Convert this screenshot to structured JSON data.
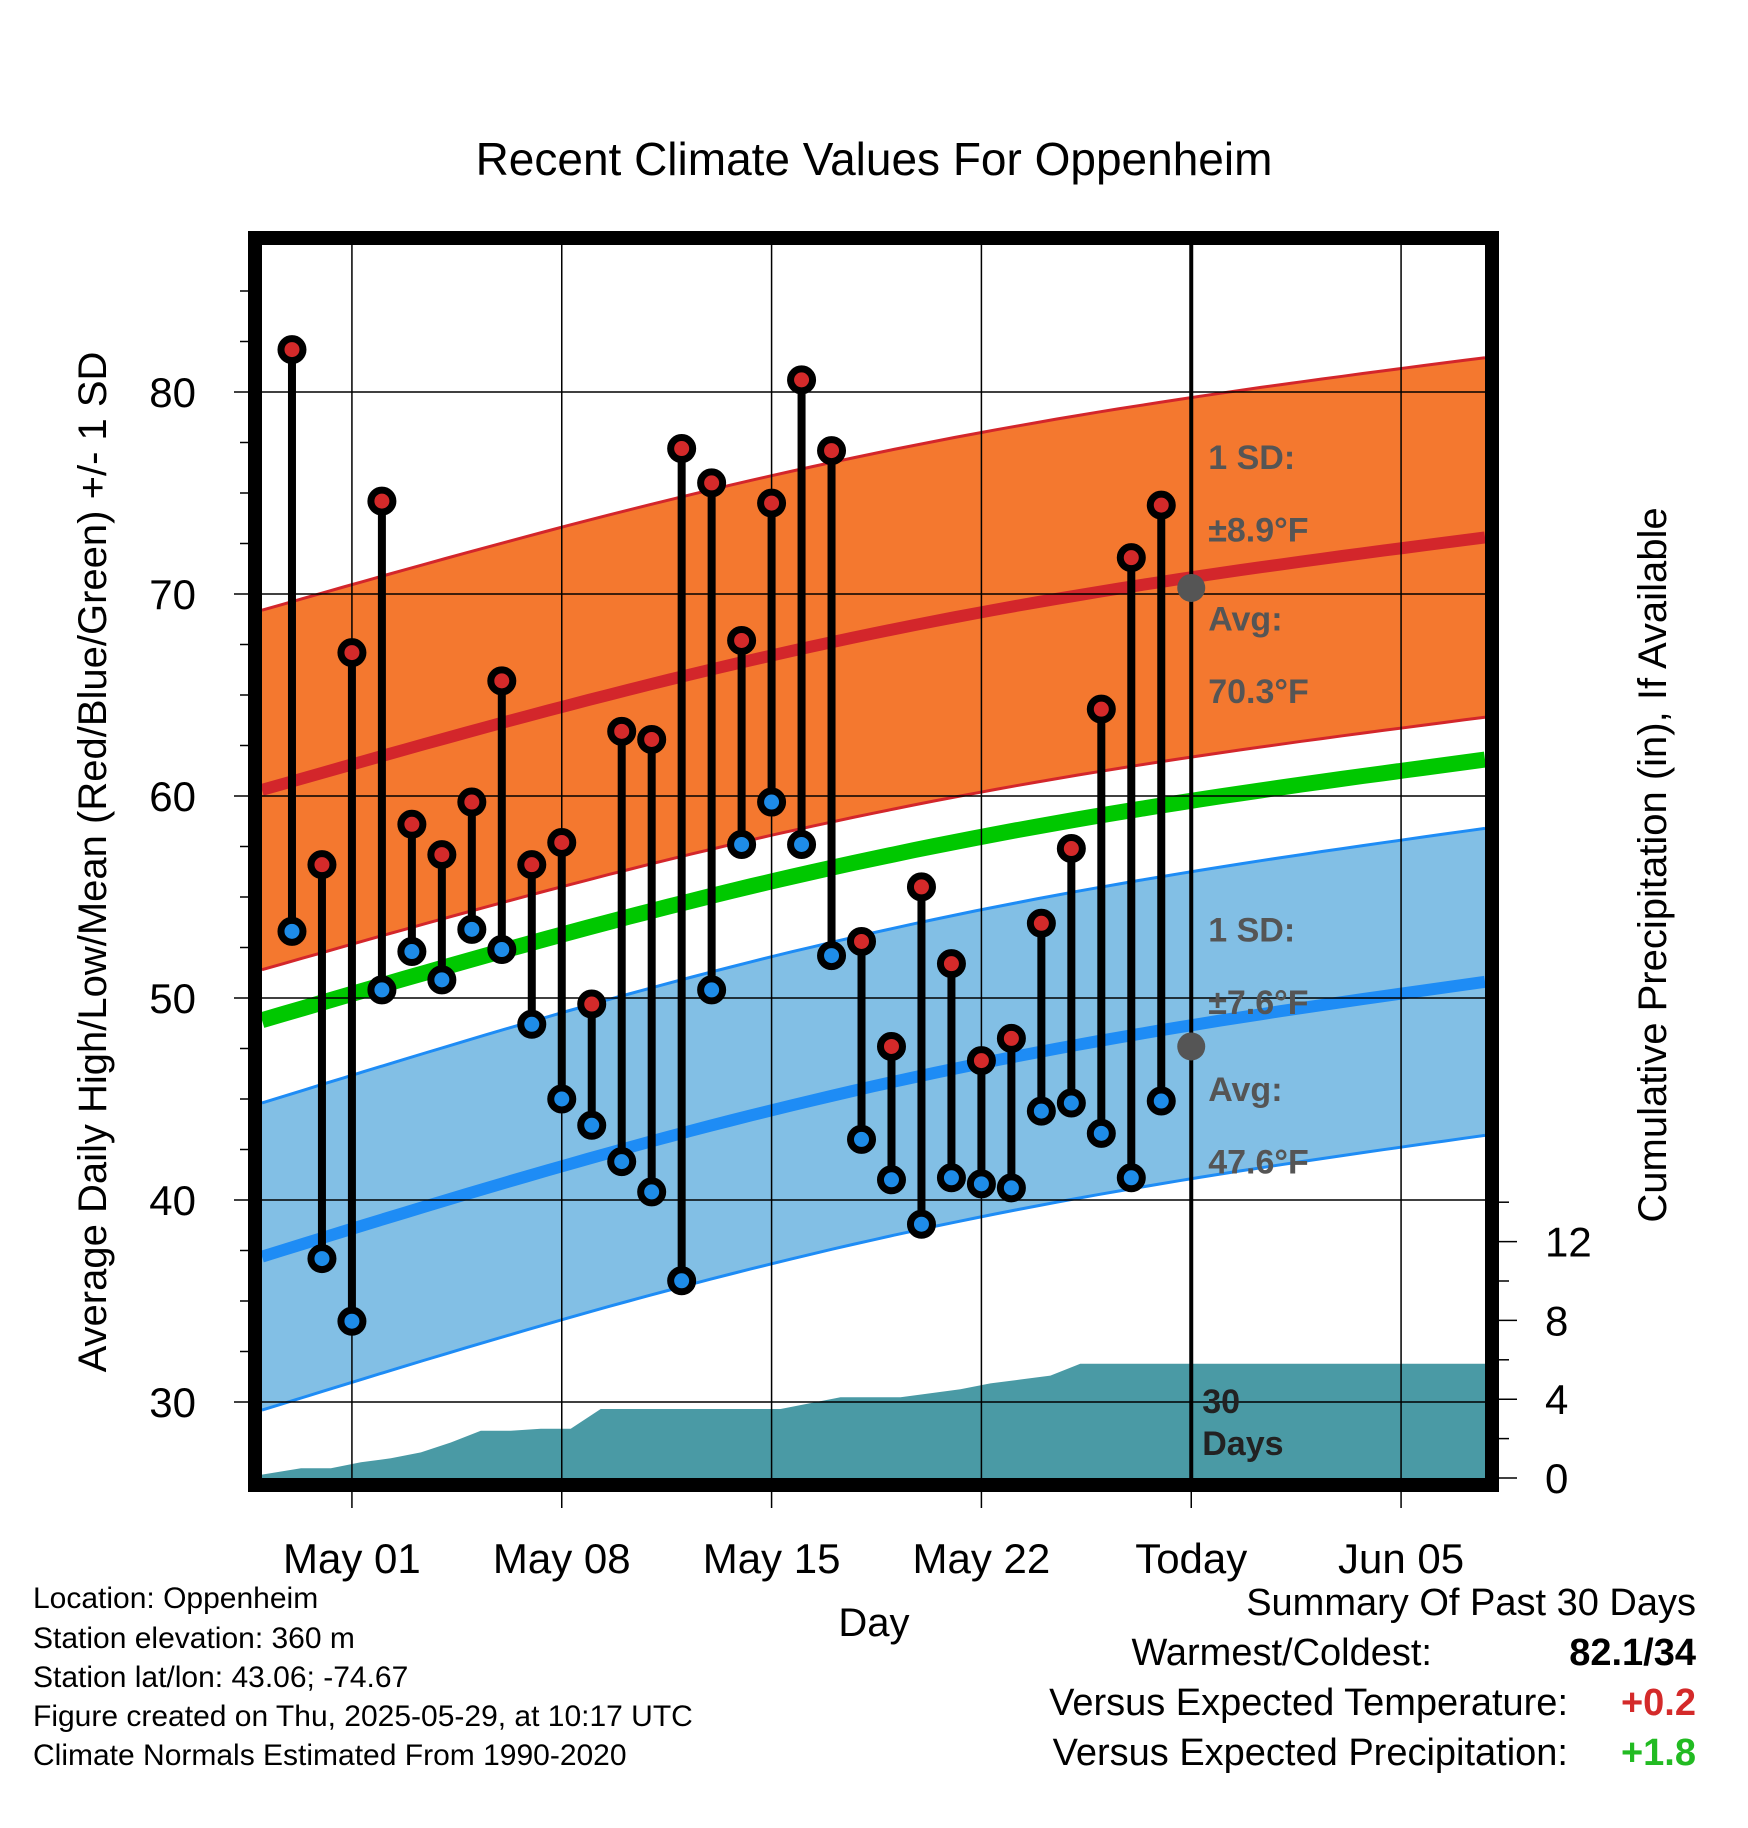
{
  "chart_data": {
    "type": "line",
    "title": "Recent Climate Values For Oppenheim",
    "xlabel": "Day",
    "ylabel": "Average Daily High/Low/Mean (Red/Blue/Green) +/- 1 SD",
    "y2label": "Cumulative Precipitation (in), If Available",
    "ylim": [
      26,
      88
    ],
    "y2lim": [
      0,
      30
    ],
    "y_ticks": [
      "30",
      "40",
      "50",
      "60",
      "70",
      "80"
    ],
    "y2_ticks": [
      "0",
      "4",
      "8",
      "12"
    ],
    "x_ticks": [
      {
        "label": "May 01",
        "day": 1
      },
      {
        "label": "May 08",
        "day": 8
      },
      {
        "label": "May 15",
        "day": 15
      },
      {
        "label": "May 22",
        "day": 22
      },
      {
        "label": "Today",
        "day": 29
      },
      {
        "label": "Jun 05",
        "day": 36
      }
    ],
    "xlim": [
      -2,
      38.8
    ],
    "today_day": 29,
    "today_label": "30 Days",
    "grid": true,
    "highs": [
      82.1,
      56.6,
      67.1,
      74.6,
      58.6,
      57.1,
      59.7,
      65.7,
      56.6,
      57.7,
      49.7,
      63.2,
      62.8,
      77.2,
      75.5,
      67.7,
      74.5,
      80.6,
      77.1,
      52.8,
      47.6,
      55.5,
      51.7,
      46.9,
      48.0,
      53.7,
      57.4,
      64.3,
      71.8,
      74.4
    ],
    "lows": [
      53.3,
      37.1,
      34.0,
      50.4,
      52.3,
      50.9,
      53.4,
      52.4,
      48.7,
      45.0,
      43.7,
      41.9,
      40.4,
      36.0,
      50.4,
      57.6,
      59.7,
      57.6,
      52.1,
      43.0,
      41.0,
      38.8,
      41.1,
      40.8,
      40.6,
      44.4,
      44.8,
      43.3,
      41.1,
      44.9
    ],
    "x_start_day": -1,
    "normal_high": {
      "start": 60.3,
      "end": 72.8,
      "sd": 8.9
    },
    "normal_low": {
      "start": 37.2,
      "end": 50.8,
      "sd": 7.6
    },
    "normal_mean": {
      "start": 48.9,
      "end": 61.8
    },
    "precip": {
      "x": [
        -2.7,
        -0.7,
        0.3,
        1.3,
        2.3,
        3.3,
        4.3,
        5.3,
        6.3,
        7.3,
        8.3,
        9.3,
        10.3,
        11.3,
        12.3,
        13.3,
        14.3,
        15.3,
        16.3,
        17.3,
        18.3,
        19.3,
        20.3,
        21.3,
        22.3,
        23.3,
        24.3,
        25.3,
        26.3,
        27.3,
        28.3,
        38.8
      ],
      "y": [
        0.0,
        0.5,
        0.5,
        0.8,
        1.0,
        1.3,
        1.8,
        2.4,
        2.4,
        2.5,
        2.5,
        3.5,
        3.5,
        3.5,
        3.5,
        3.5,
        3.5,
        3.5,
        3.8,
        4.1,
        4.1,
        4.1,
        4.3,
        4.5,
        4.8,
        5.0,
        5.2,
        5.8,
        5.8,
        5.8,
        5.8,
        5.8
      ]
    },
    "annotations": {
      "high_sd": [
        "1 SD:",
        "±8.9°F"
      ],
      "high_avg": [
        "Avg:",
        "70.3°F"
      ],
      "low_sd": [
        "1 SD:",
        "±7.6°F"
      ],
      "low_avg": [
        "Avg:",
        "47.6°F"
      ],
      "today_high_avg": 70.3,
      "today_low_avg": 47.6
    },
    "colors": {
      "high_band": "#f4782f",
      "high_line": "#d3262b",
      "low_band": "#82bfe5",
      "low_line": "#1e8cf5",
      "mean_line": "#00c800",
      "precip": "#4a9aa5",
      "high_marker": "#d42a2a",
      "low_marker": "#1e8ce8",
      "avg_marker": "#555555"
    }
  },
  "info": {
    "location": "Location: Oppenheim",
    "elevation": "Station elevation: 360 m",
    "latlon": "Station lat/lon: 43.06; -74.67",
    "created": "Figure created on Thu, 2025-05-29, at 10:17 UTC",
    "normals": "Climate Normals Estimated From 1990-2020"
  },
  "summary": {
    "title": "Summary Of Past 30 Days",
    "warm_cold_label": "Warmest/Coldest:",
    "warm_cold_value": "82.1/34",
    "temp_label": "Versus Expected Temperature:",
    "temp_value": "+0.2",
    "temp_color": "#d42a2a",
    "precip_label": "Versus Expected Precipitation:",
    "precip_value": "+1.8",
    "precip_color": "#22bb22"
  }
}
